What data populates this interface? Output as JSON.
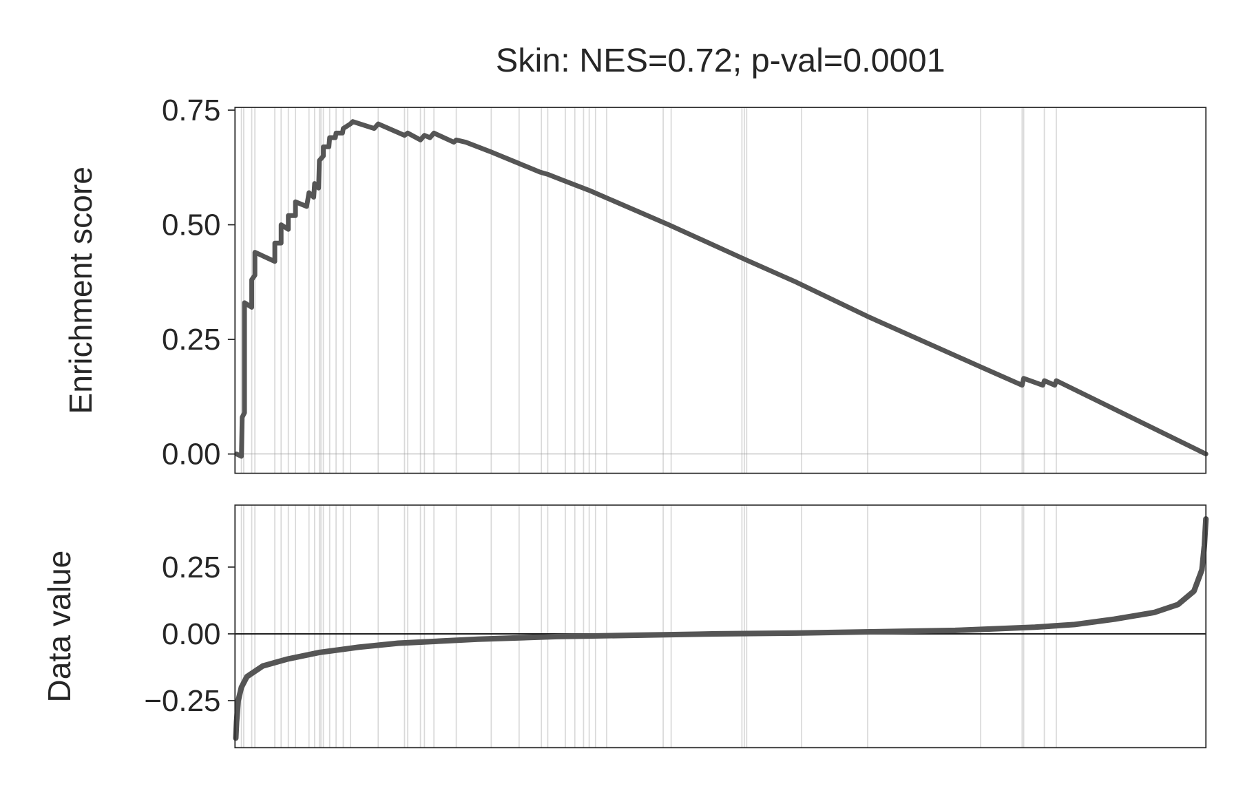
{
  "chart_data": [
    {
      "type": "line",
      "title": "Skin: NES=0.72; p-val=0.0001",
      "ylabel": "Enrichment score",
      "xlim": [
        0,
        100
      ],
      "ylim": [
        -0.042,
        0.756
      ],
      "yticks": [
        {
          "value": 0,
          "label": "0.00"
        },
        {
          "value": 0.25,
          "label": "0.25"
        },
        {
          "value": 0.5,
          "label": "0.50"
        },
        {
          "value": 0.75,
          "label": "0.75"
        }
      ],
      "color": "#555555",
      "hit_color": "#d9d9d9",
      "hits": [
        0.66,
        0.9,
        1.72,
        2.05,
        4.1,
        4.75,
        5.49,
        6.23,
        7.62,
        8.2,
        8.69,
        8.85,
        9.1,
        9.75,
        10.41,
        11.15,
        11.89,
        14.75,
        17.46,
        17.79,
        19.1,
        19.51,
        20.49,
        22.79,
        26.39,
        29.26,
        31.56,
        32.21,
        34.02,
        35.0,
        35.9,
        36.48,
        37.13,
        38.28,
        44.1,
        44.92,
        52.21,
        52.46,
        52.7,
        58.36,
        65.16,
        76.8,
        81.07,
        81.23,
        83.36,
        84.59
      ],
      "x": [
        0.16,
        0.66,
        0.74,
        0.98,
        0.98,
        1.72,
        1.72,
        2.05,
        2.05,
        4.1,
        4.1,
        4.75,
        4.75,
        5.49,
        5.49,
        6.23,
        6.23,
        7.38,
        7.62,
        8.11,
        8.2,
        8.61,
        8.69,
        9.1,
        9.1,
        9.67,
        9.75,
        10.33,
        10.41,
        11.07,
        11.15,
        11.89,
        12.13,
        14.34,
        14.75,
        17.46,
        17.79,
        19.1,
        19.51,
        20.08,
        20.49,
        22.54,
        22.79,
        23.77,
        26.23,
        29.1,
        31.39,
        32.21,
        34.02,
        36.48,
        38.11,
        44.67,
        52.46,
        57.79,
        65.16,
        76.8,
        81.07,
        81.23,
        83.2,
        83.36,
        84.43,
        84.59,
        100
      ],
      "values": [
        0.0,
        -0.005,
        0.08,
        0.09,
        0.33,
        0.32,
        0.38,
        0.39,
        0.44,
        0.42,
        0.46,
        0.46,
        0.5,
        0.49,
        0.52,
        0.52,
        0.55,
        0.54,
        0.57,
        0.56,
        0.59,
        0.58,
        0.64,
        0.65,
        0.67,
        0.67,
        0.69,
        0.69,
        0.7,
        0.7,
        0.71,
        0.72,
        0.725,
        0.71,
        0.72,
        0.695,
        0.7,
        0.685,
        0.695,
        0.69,
        0.7,
        0.68,
        0.685,
        0.68,
        0.66,
        0.635,
        0.615,
        0.61,
        0.595,
        0.575,
        0.56,
        0.5,
        0.425,
        0.375,
        0.3,
        0.19,
        0.15,
        0.165,
        0.15,
        0.16,
        0.15,
        0.16,
        0.0
      ]
    },
    {
      "type": "line",
      "ylabel": "Data value",
      "xlim": [
        0,
        100
      ],
      "ylim": [
        -0.426,
        0.482
      ],
      "yticks": [
        {
          "value": -0.25,
          "label": "−0.25"
        },
        {
          "value": 0,
          "label": "0.00"
        },
        {
          "value": 0.25,
          "label": "0.25"
        }
      ],
      "color": "#555555",
      "x": [
        0.08,
        0.16,
        0.33,
        0.66,
        1.23,
        2.87,
        5.33,
        8.61,
        12.7,
        16.8,
        25.0,
        33.2,
        41.39,
        49.59,
        57.79,
        65.98,
        74.18,
        82.38,
        86.48,
        90.57,
        94.67,
        97.13,
        98.77,
        99.59,
        99.84,
        100
      ],
      "values": [
        -0.39,
        -0.33,
        -0.25,
        -0.2,
        -0.16,
        -0.12,
        -0.095,
        -0.07,
        -0.05,
        -0.035,
        -0.02,
        -0.01,
        -0.005,
        0.0,
        0.003,
        0.008,
        0.013,
        0.025,
        0.035,
        0.055,
        0.08,
        0.11,
        0.16,
        0.24,
        0.33,
        0.43
      ]
    }
  ]
}
